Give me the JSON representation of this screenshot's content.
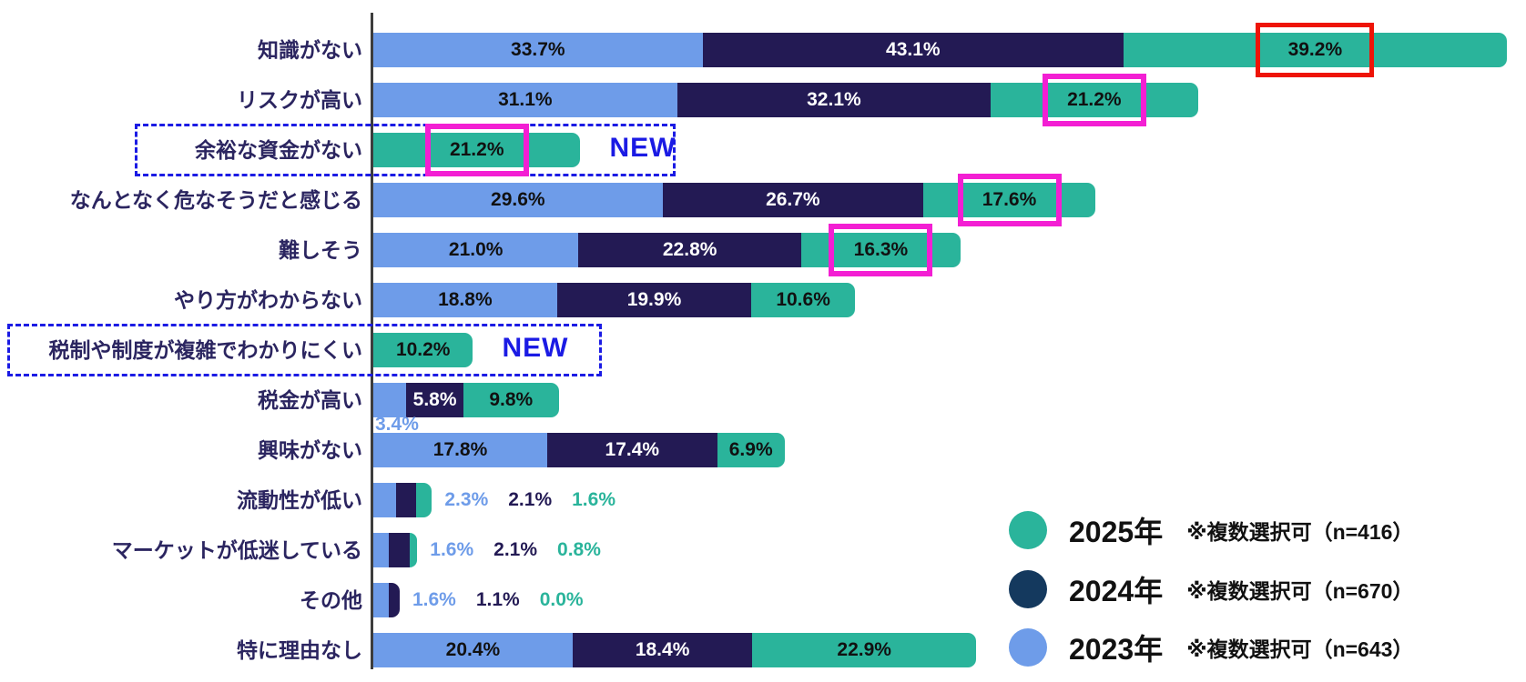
{
  "colors": {
    "series_2023": "#6e9ce9",
    "series_2024": "#231a54",
    "series_2025": "#2ab49b",
    "legend_2024_dot": "#14395e",
    "text_on_2023": "#111111",
    "text_on_2024": "#ffffff",
    "text_on_2025": "#111111",
    "category_label": "#2b2560",
    "new_blue": "#1b1be4",
    "highlight_pink": "#f31fd3",
    "highlight_red": "#ee1407",
    "axis": "#3d3d3d"
  },
  "chart_data": {
    "type": "bar",
    "orientation": "horizontal-stacked",
    "unit": "%",
    "series_order": [
      "2023",
      "2024",
      "2025"
    ],
    "legend": [
      {
        "id": "2025",
        "year_label": "2025年",
        "note": "※複数選択可（n=416）",
        "color_key": "series_2025"
      },
      {
        "id": "2024",
        "year_label": "2024年",
        "note": "※複数選択可（n=670）",
        "color_key": "legend_2024_dot"
      },
      {
        "id": "2023",
        "year_label": "2023年",
        "note": "※複数選択可（n=643）",
        "color_key": "series_2023"
      }
    ],
    "new_badge_text": "NEW",
    "rows": [
      {
        "category": "知識がない",
        "values": {
          "2023": 33.7,
          "2024": 43.1,
          "2025": 39.2
        },
        "highlight": {
          "series": "2025",
          "style": "red"
        }
      },
      {
        "category": "リスクが高い",
        "values": {
          "2023": 31.1,
          "2024": 32.1,
          "2025": 21.2
        },
        "highlight": {
          "series": "2025",
          "style": "pink"
        }
      },
      {
        "category": "余裕な資金がない",
        "values": {
          "2025": 21.2
        },
        "new": true,
        "highlight": {
          "series": "2025",
          "style": "pink"
        }
      },
      {
        "category": "なんとなく危なそうだと感じる",
        "values": {
          "2023": 29.6,
          "2024": 26.7,
          "2025": 17.6
        },
        "highlight": {
          "series": "2025",
          "style": "pink"
        }
      },
      {
        "category": "難しそう",
        "values": {
          "2023": 21.0,
          "2024": 22.8,
          "2025": 16.3
        },
        "highlight": {
          "series": "2025",
          "style": "pink"
        }
      },
      {
        "category": "やり方がわからない",
        "values": {
          "2023": 18.8,
          "2024": 19.9,
          "2025": 10.6
        }
      },
      {
        "category": "税制や制度が複雑でわかりにくい",
        "values": {
          "2025": 10.2
        },
        "new": true
      },
      {
        "category": "税金が高い",
        "values": {
          "2023": 3.4,
          "2024": 5.8,
          "2025": 9.8
        },
        "label_below": [
          "2023"
        ]
      },
      {
        "category": "興味がない",
        "values": {
          "2023": 17.8,
          "2024": 17.4,
          "2025": 6.9
        }
      },
      {
        "category": "流動性が低い",
        "values": {
          "2023": 2.3,
          "2024": 2.1,
          "2025": 1.6
        },
        "labels_after": true
      },
      {
        "category": "マーケットが低迷している",
        "values": {
          "2023": 1.6,
          "2024": 2.1,
          "2025": 0.8
        },
        "labels_after": true
      },
      {
        "category": "その他",
        "values": {
          "2023": 1.6,
          "2024": 1.1,
          "2025": 0.0
        },
        "labels_after": true
      },
      {
        "category": "特に理由なし",
        "values": {
          "2023": 20.4,
          "2024": 18.4,
          "2025": 22.9
        }
      }
    ]
  }
}
